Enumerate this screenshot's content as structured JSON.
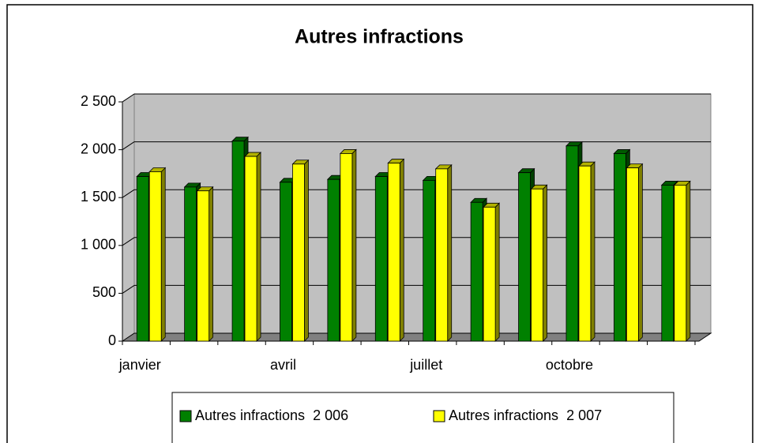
{
  "chart_data": {
    "type": "bar",
    "title": "Autres infractions",
    "categories": [
      "janvier",
      null,
      null,
      "avril",
      null,
      null,
      "juillet",
      null,
      null,
      "octobre",
      null,
      null
    ],
    "series": [
      {
        "name": "Autres infractions  2 006",
        "color": "#008000",
        "values": [
          1720,
          1610,
          2090,
          1660,
          1690,
          1720,
          1680,
          1450,
          1760,
          2040,
          1960,
          1630
        ]
      },
      {
        "name": "Autres infractions  2 007",
        "color": "#ffff00",
        "values": [
          1770,
          1570,
          1930,
          1850,
          1960,
          1860,
          1800,
          1400,
          1590,
          1830,
          1810,
          1630
        ]
      }
    ],
    "ylim": [
      0,
      2500
    ],
    "yticks": [
      0,
      500,
      {
        "value": 1000,
        "label": "1 000"
      },
      {
        "value": 1500,
        "label": "1 500"
      },
      {
        "value": 2000,
        "label": "2 000"
      },
      {
        "value": 2500,
        "label": "2 500"
      }
    ],
    "grid": true,
    "legend": "bottom"
  }
}
